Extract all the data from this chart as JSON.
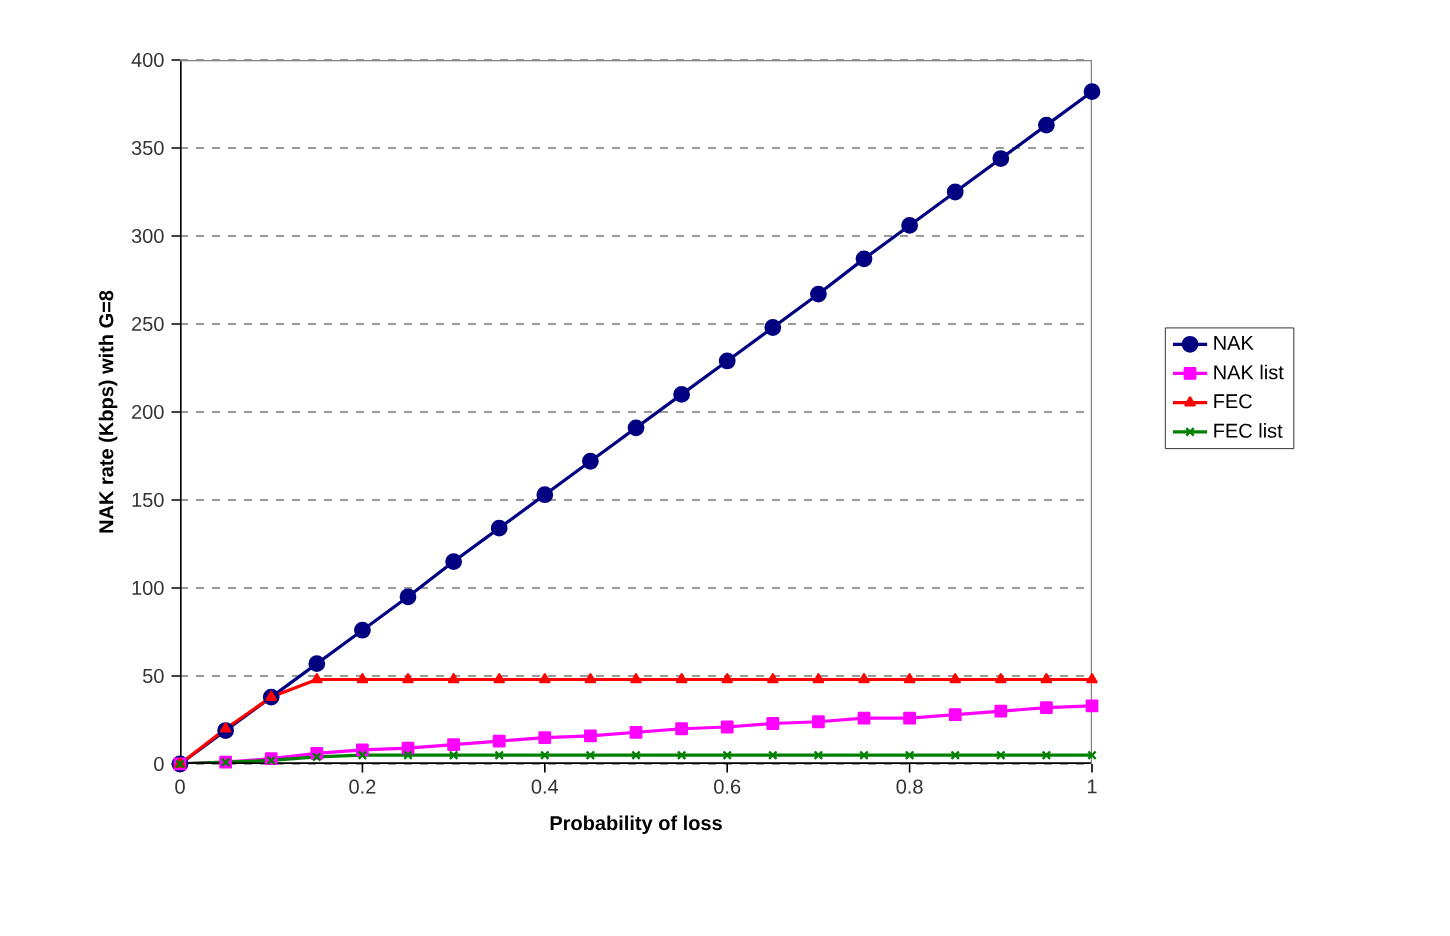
{
  "chart_data": {
    "type": "line",
    "xlabel": "Probability of loss",
    "ylabel": "NAK rate (Kbps) with G=8",
    "x": [
      0,
      0.05,
      0.1,
      0.15,
      0.2,
      0.25,
      0.3,
      0.35,
      0.4,
      0.45,
      0.5,
      0.55,
      0.6,
      0.65,
      0.7,
      0.75,
      0.8,
      0.85,
      0.9,
      0.95,
      1
    ],
    "series": [
      {
        "name": "NAK",
        "color": "#000080",
        "marker": "circle",
        "values": [
          0,
          19,
          38,
          57,
          76,
          95,
          115,
          134,
          153,
          172,
          191,
          210,
          229,
          248,
          267,
          287,
          306,
          325,
          344,
          363,
          382
        ]
      },
      {
        "name": "NAK list",
        "color": "#ff00ff",
        "marker": "square",
        "values": [
          0,
          1,
          3,
          6,
          8,
          9,
          11,
          13,
          15,
          16,
          18,
          20,
          21,
          23,
          24,
          26,
          26,
          28,
          30,
          32,
          33
        ]
      },
      {
        "name": "FEC",
        "color": "#ff0000",
        "marker": "triangle",
        "values": [
          0,
          20,
          38,
          48,
          48,
          48,
          48,
          48,
          48,
          48,
          48,
          48,
          48,
          48,
          48,
          48,
          48,
          48,
          48,
          48,
          48
        ]
      },
      {
        "name": "FEC list",
        "color": "#008000",
        "marker": "cross",
        "values": [
          0,
          1,
          2,
          4,
          5,
          5,
          5,
          5,
          5,
          5,
          5,
          5,
          5,
          5,
          5,
          5,
          5,
          5,
          5,
          5,
          5
        ]
      }
    ],
    "xlim": [
      0,
      1
    ],
    "xticks": [
      0,
      0.2,
      0.4,
      0.6,
      0.8,
      1
    ],
    "ylim": [
      0,
      400
    ],
    "yticks": [
      0,
      50,
      100,
      150,
      200,
      250,
      300,
      350,
      400
    ],
    "grid": "y",
    "legend": "right",
    "line_style": "solid"
  }
}
